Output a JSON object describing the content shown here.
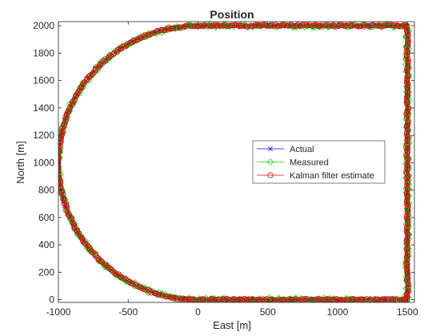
{
  "chart_data": {
    "type": "line",
    "title": "Position",
    "xlabel": "East [m]",
    "ylabel": "North [m]",
    "xlim": [
      -1000,
      1550
    ],
    "ylim": [
      -20,
      2030
    ],
    "xticks": [
      -1000,
      -500,
      0,
      500,
      1000,
      1500
    ],
    "xtick_labels": [
      "-1000",
      "-500",
      "0",
      "500",
      "1000",
      "1500"
    ],
    "yticks": [
      0,
      200,
      400,
      600,
      800,
      1000,
      1200,
      1400,
      1600,
      1800,
      2000
    ],
    "ytick_labels": [
      "0",
      "200",
      "400",
      "600",
      "800",
      "1000",
      "1200",
      "1400",
      "1600",
      "1800",
      "2000"
    ],
    "grid": false,
    "legend_position": "right",
    "path": {
      "segments": [
        {
          "shape": "line",
          "from": [
            1500,
            0
          ],
          "to": [
            1500,
            2000
          ]
        },
        {
          "shape": "line",
          "from": [
            1500,
            2000
          ],
          "to": [
            0,
            2000
          ]
        },
        {
          "shape": "arc",
          "center": [
            0,
            1000
          ],
          "radius": 1000,
          "from_deg": 90,
          "to_deg": 270
        },
        {
          "shape": "line",
          "from": [
            0,
            0
          ],
          "to": [
            1500,
            0
          ]
        }
      ]
    },
    "series": [
      {
        "name": "Actual",
        "color": "#0000ff",
        "marker": "x",
        "noise": 0
      },
      {
        "name": "Measured",
        "color": "#00e000",
        "marker": "diamond",
        "noise": 12
      },
      {
        "name": "Kalman filter estimate",
        "color": "#e00000",
        "marker": "circle",
        "noise": 6
      }
    ]
  }
}
